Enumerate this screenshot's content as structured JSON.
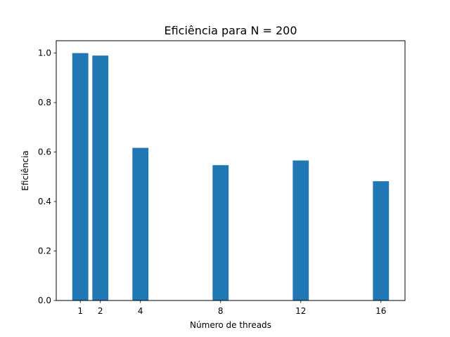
{
  "chart_data": {
    "type": "bar",
    "title": "Eficiência para N = 200",
    "xlabel": "Número de threads",
    "ylabel": "Eficiência",
    "categories": [
      1,
      2,
      4,
      8,
      12,
      16
    ],
    "values": [
      1.0,
      0.99,
      0.617,
      0.547,
      0.566,
      0.482
    ],
    "xlim": [
      -0.2,
      17.2
    ],
    "ylim": [
      0,
      1.05
    ],
    "yticks": [
      "0.0",
      "0.2",
      "0.4",
      "0.6",
      "0.8",
      "1.0"
    ],
    "xticks": [
      "1",
      "2",
      "4",
      "8",
      "12",
      "16"
    ],
    "grid": false,
    "bar_color": "#1f77b4"
  }
}
